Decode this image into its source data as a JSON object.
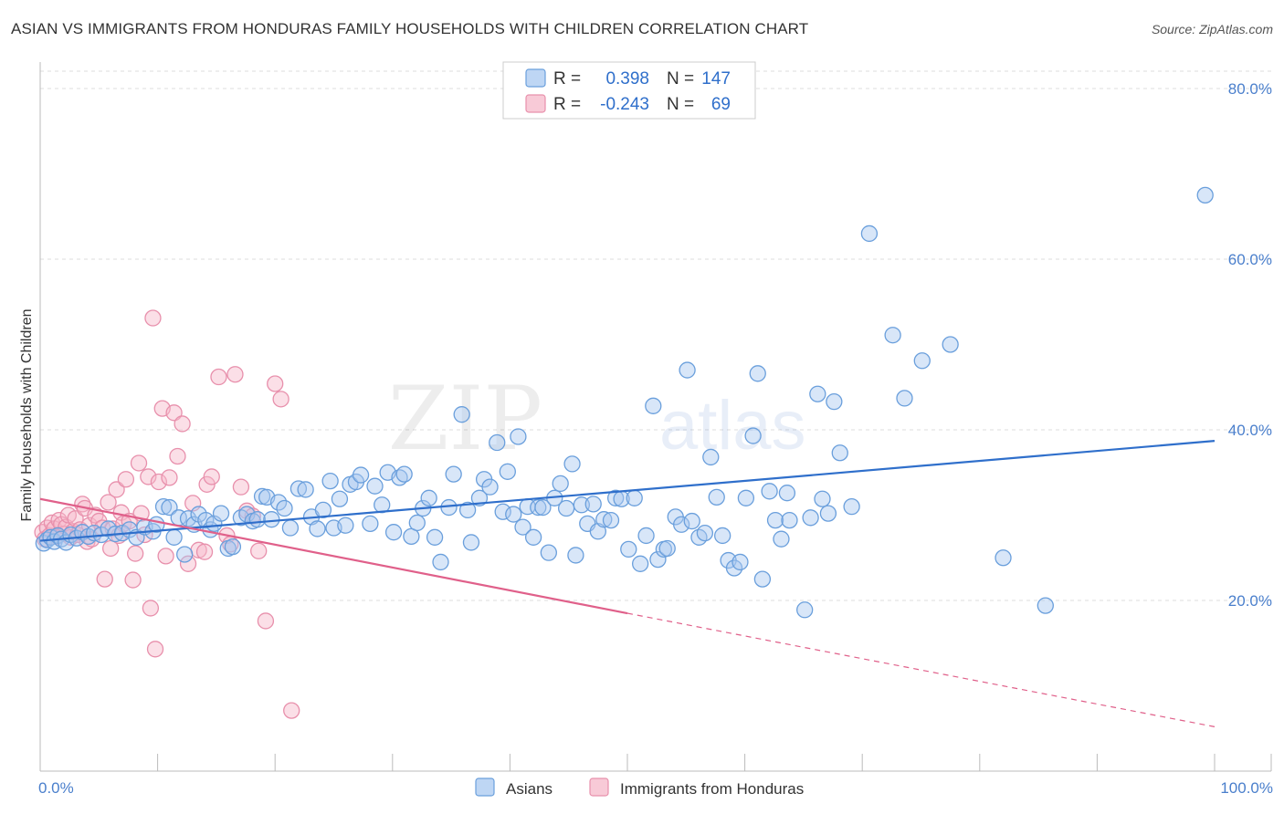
{
  "title": "ASIAN VS IMMIGRANTS FROM HONDURAS FAMILY HOUSEHOLDS WITH CHILDREN CORRELATION CHART",
  "source": "Source: ZipAtlas.com",
  "watermark": {
    "zip": "ZIP",
    "atlas": "atlas"
  },
  "colors": {
    "asian_fill": "#a8c8f0",
    "asian_stroke": "#6a9fdc",
    "asian_line": "#2f6fcb",
    "honduras_fill": "#f6b8ca",
    "honduras_stroke": "#e890ac",
    "honduras_line": "#e0608a",
    "accent_text": "#2f6fcb",
    "grid": "#dddddd"
  },
  "legend": {
    "r_label": "R =",
    "n_label": "N =",
    "rows": [
      {
        "r": "0.398",
        "n": "147"
      },
      {
        "r": "-0.243",
        "n": "69"
      }
    ]
  },
  "chart_data": {
    "type": "scatter",
    "title": "ASIAN VS IMMIGRANTS FROM HONDURAS FAMILY HOUSEHOLDS WITH CHILDREN CORRELATION CHART",
    "xlabel": "",
    "ylabel": "Family Households with Children",
    "xlim": [
      0,
      100
    ],
    "ylim": [
      0,
      82
    ],
    "x_tick_labels": [
      "0.0%",
      "100.0%"
    ],
    "y_ticks": [
      20,
      40,
      60,
      80
    ],
    "y_tick_labels": [
      "20.0%",
      "40.0%",
      "60.0%",
      "80.0%"
    ],
    "grid": true,
    "legend_position": "bottom",
    "series": [
      {
        "name": "Asians",
        "r": 0.398,
        "n": 147,
        "trend": {
          "x0": 0,
          "y0": 27.0,
          "x1": 100,
          "y1": 38.7
        },
        "points": [
          [
            0.3,
            26.7
          ],
          [
            0.6,
            27.1
          ],
          [
            0.9,
            27.4
          ],
          [
            1.2,
            26.9
          ],
          [
            1.5,
            27.6
          ],
          [
            1.8,
            27.2
          ],
          [
            2.2,
            26.8
          ],
          [
            2.6,
            27.7
          ],
          [
            3.1,
            27.3
          ],
          [
            3.6,
            28.0
          ],
          [
            4.1,
            27.5
          ],
          [
            4.6,
            27.9
          ],
          [
            5.2,
            27.7
          ],
          [
            5.8,
            28.4
          ],
          [
            6.4,
            27.8
          ],
          [
            7.0,
            27.9
          ],
          [
            7.6,
            28.3
          ],
          [
            8.2,
            27.4
          ],
          [
            8.9,
            28.6
          ],
          [
            9.6,
            28.1
          ],
          [
            9.9,
            28.9
          ],
          [
            10.5,
            31.0
          ],
          [
            11.0,
            30.9
          ],
          [
            11.4,
            27.4
          ],
          [
            11.8,
            29.7
          ],
          [
            12.3,
            25.4
          ],
          [
            12.6,
            29.6
          ],
          [
            13.1,
            28.9
          ],
          [
            13.5,
            30.1
          ],
          [
            14.1,
            29.4
          ],
          [
            14.5,
            28.3
          ],
          [
            14.8,
            29.0
          ],
          [
            15.4,
            30.2
          ],
          [
            16.0,
            26.1
          ],
          [
            16.4,
            26.3
          ],
          [
            17.1,
            29.7
          ],
          [
            17.6,
            30.1
          ],
          [
            18.1,
            29.3
          ],
          [
            18.5,
            29.5
          ],
          [
            18.9,
            32.2
          ],
          [
            19.3,
            32.1
          ],
          [
            19.7,
            29.5
          ],
          [
            20.3,
            31.5
          ],
          [
            20.8,
            30.8
          ],
          [
            21.3,
            28.5
          ],
          [
            22.0,
            33.1
          ],
          [
            22.6,
            33.0
          ],
          [
            23.1,
            29.8
          ],
          [
            23.6,
            28.4
          ],
          [
            24.1,
            30.6
          ],
          [
            24.7,
            34.0
          ],
          [
            25.0,
            28.5
          ],
          [
            25.5,
            31.9
          ],
          [
            26.0,
            28.8
          ],
          [
            26.4,
            33.6
          ],
          [
            26.9,
            33.9
          ],
          [
            27.3,
            34.7
          ],
          [
            28.1,
            29.0
          ],
          [
            28.5,
            33.4
          ],
          [
            29.1,
            31.2
          ],
          [
            29.6,
            35.0
          ],
          [
            30.1,
            28.0
          ],
          [
            30.6,
            34.4
          ],
          [
            31.0,
            34.8
          ],
          [
            31.6,
            27.5
          ],
          [
            32.1,
            29.1
          ],
          [
            32.6,
            30.8
          ],
          [
            33.1,
            32.0
          ],
          [
            33.6,
            27.4
          ],
          [
            34.1,
            24.5
          ],
          [
            34.8,
            30.9
          ],
          [
            35.2,
            34.8
          ],
          [
            35.9,
            41.8
          ],
          [
            36.4,
            30.6
          ],
          [
            36.7,
            26.8
          ],
          [
            37.4,
            32.0
          ],
          [
            37.8,
            34.2
          ],
          [
            38.3,
            33.3
          ],
          [
            38.9,
            38.5
          ],
          [
            39.4,
            30.4
          ],
          [
            39.8,
            35.1
          ],
          [
            40.3,
            30.1
          ],
          [
            40.7,
            39.2
          ],
          [
            41.1,
            28.6
          ],
          [
            41.5,
            31.0
          ],
          [
            42.0,
            27.4
          ],
          [
            42.4,
            30.9
          ],
          [
            42.8,
            30.9
          ],
          [
            43.3,
            25.6
          ],
          [
            43.8,
            32.0
          ],
          [
            44.3,
            33.7
          ],
          [
            44.8,
            30.8
          ],
          [
            45.3,
            36.0
          ],
          [
            45.6,
            25.3
          ],
          [
            46.1,
            31.2
          ],
          [
            46.6,
            29.0
          ],
          [
            47.1,
            31.3
          ],
          [
            47.5,
            28.1
          ],
          [
            48.0,
            29.5
          ],
          [
            48.6,
            29.4
          ],
          [
            49.0,
            32.0
          ],
          [
            49.5,
            31.9
          ],
          [
            50.1,
            26.0
          ],
          [
            50.6,
            32.0
          ],
          [
            51.1,
            24.3
          ],
          [
            51.6,
            27.6
          ],
          [
            52.2,
            42.8
          ],
          [
            52.6,
            24.8
          ],
          [
            53.1,
            26.0
          ],
          [
            53.4,
            26.1
          ],
          [
            54.1,
            29.8
          ],
          [
            54.6,
            28.9
          ],
          [
            55.1,
            47.0
          ],
          [
            55.5,
            29.3
          ],
          [
            56.1,
            27.4
          ],
          [
            56.6,
            27.9
          ],
          [
            57.1,
            36.8
          ],
          [
            57.6,
            32.1
          ],
          [
            58.1,
            27.6
          ],
          [
            58.6,
            24.7
          ],
          [
            59.1,
            23.8
          ],
          [
            59.6,
            24.5
          ],
          [
            60.1,
            32.0
          ],
          [
            60.7,
            39.3
          ],
          [
            61.1,
            46.6
          ],
          [
            61.5,
            22.5
          ],
          [
            62.1,
            32.8
          ],
          [
            62.6,
            29.4
          ],
          [
            63.1,
            27.2
          ],
          [
            63.6,
            32.6
          ],
          [
            63.8,
            29.4
          ],
          [
            65.1,
            18.9
          ],
          [
            65.6,
            29.7
          ],
          [
            66.2,
            44.2
          ],
          [
            66.6,
            31.9
          ],
          [
            67.1,
            30.2
          ],
          [
            67.6,
            43.3
          ],
          [
            68.1,
            37.3
          ],
          [
            69.1,
            31.0
          ],
          [
            70.6,
            63.0
          ],
          [
            72.6,
            51.1
          ],
          [
            73.6,
            43.7
          ],
          [
            75.1,
            48.1
          ],
          [
            77.5,
            50.0
          ],
          [
            82.0,
            25.0
          ],
          [
            85.6,
            19.4
          ],
          [
            99.2,
            67.5
          ]
        ]
      },
      {
        "name": "Immigrants from Honduras",
        "r": -0.243,
        "n": 69,
        "trend": {
          "x0": 0,
          "y0": 31.9,
          "x1": 50,
          "y1": 18.5,
          "dashed_to": {
            "x": 100,
            "y": 5.2
          }
        },
        "points": [
          [
            0.2,
            28.0
          ],
          [
            0.4,
            27.2
          ],
          [
            0.6,
            28.5
          ],
          [
            0.8,
            27.6
          ],
          [
            1.0,
            29.1
          ],
          [
            1.2,
            28.4
          ],
          [
            1.4,
            27.5
          ],
          [
            1.6,
            29.4
          ],
          [
            1.8,
            28.9
          ],
          [
            2.0,
            27.8
          ],
          [
            2.2,
            28.6
          ],
          [
            2.4,
            30.0
          ],
          [
            2.6,
            27.4
          ],
          [
            2.8,
            28.1
          ],
          [
            3.0,
            29.6
          ],
          [
            3.2,
            27.7
          ],
          [
            3.4,
            28.3
          ],
          [
            3.6,
            31.3
          ],
          [
            3.8,
            30.8
          ],
          [
            4.0,
            26.9
          ],
          [
            4.2,
            28.8
          ],
          [
            4.4,
            27.2
          ],
          [
            4.7,
            30.0
          ],
          [
            5.0,
            29.3
          ],
          [
            5.3,
            28.5
          ],
          [
            5.5,
            22.5
          ],
          [
            5.8,
            31.5
          ],
          [
            6.0,
            26.1
          ],
          [
            6.2,
            28.4
          ],
          [
            6.5,
            33.0
          ],
          [
            6.7,
            27.6
          ],
          [
            6.9,
            30.3
          ],
          [
            7.1,
            29.0
          ],
          [
            7.3,
            34.2
          ],
          [
            7.6,
            29.3
          ],
          [
            7.9,
            22.4
          ],
          [
            8.1,
            25.5
          ],
          [
            8.4,
            36.1
          ],
          [
            8.6,
            30.2
          ],
          [
            8.9,
            27.7
          ],
          [
            9.2,
            34.5
          ],
          [
            9.4,
            19.1
          ],
          [
            9.6,
            53.1
          ],
          [
            9.8,
            14.3
          ],
          [
            10.1,
            33.9
          ],
          [
            10.4,
            42.5
          ],
          [
            10.7,
            25.2
          ],
          [
            11.0,
            34.4
          ],
          [
            11.4,
            42.0
          ],
          [
            11.7,
            36.9
          ],
          [
            12.1,
            40.7
          ],
          [
            12.6,
            24.3
          ],
          [
            13.0,
            31.4
          ],
          [
            13.5,
            25.9
          ],
          [
            14.0,
            25.7
          ],
          [
            14.2,
            33.6
          ],
          [
            14.6,
            34.5
          ],
          [
            15.2,
            46.2
          ],
          [
            15.9,
            27.6
          ],
          [
            16.2,
            26.6
          ],
          [
            16.6,
            46.5
          ],
          [
            17.1,
            33.3
          ],
          [
            17.6,
            30.5
          ],
          [
            18.1,
            29.9
          ],
          [
            18.6,
            25.8
          ],
          [
            19.2,
            17.6
          ],
          [
            20.0,
            45.4
          ],
          [
            20.5,
            43.6
          ],
          [
            21.4,
            7.1
          ]
        ]
      }
    ]
  }
}
